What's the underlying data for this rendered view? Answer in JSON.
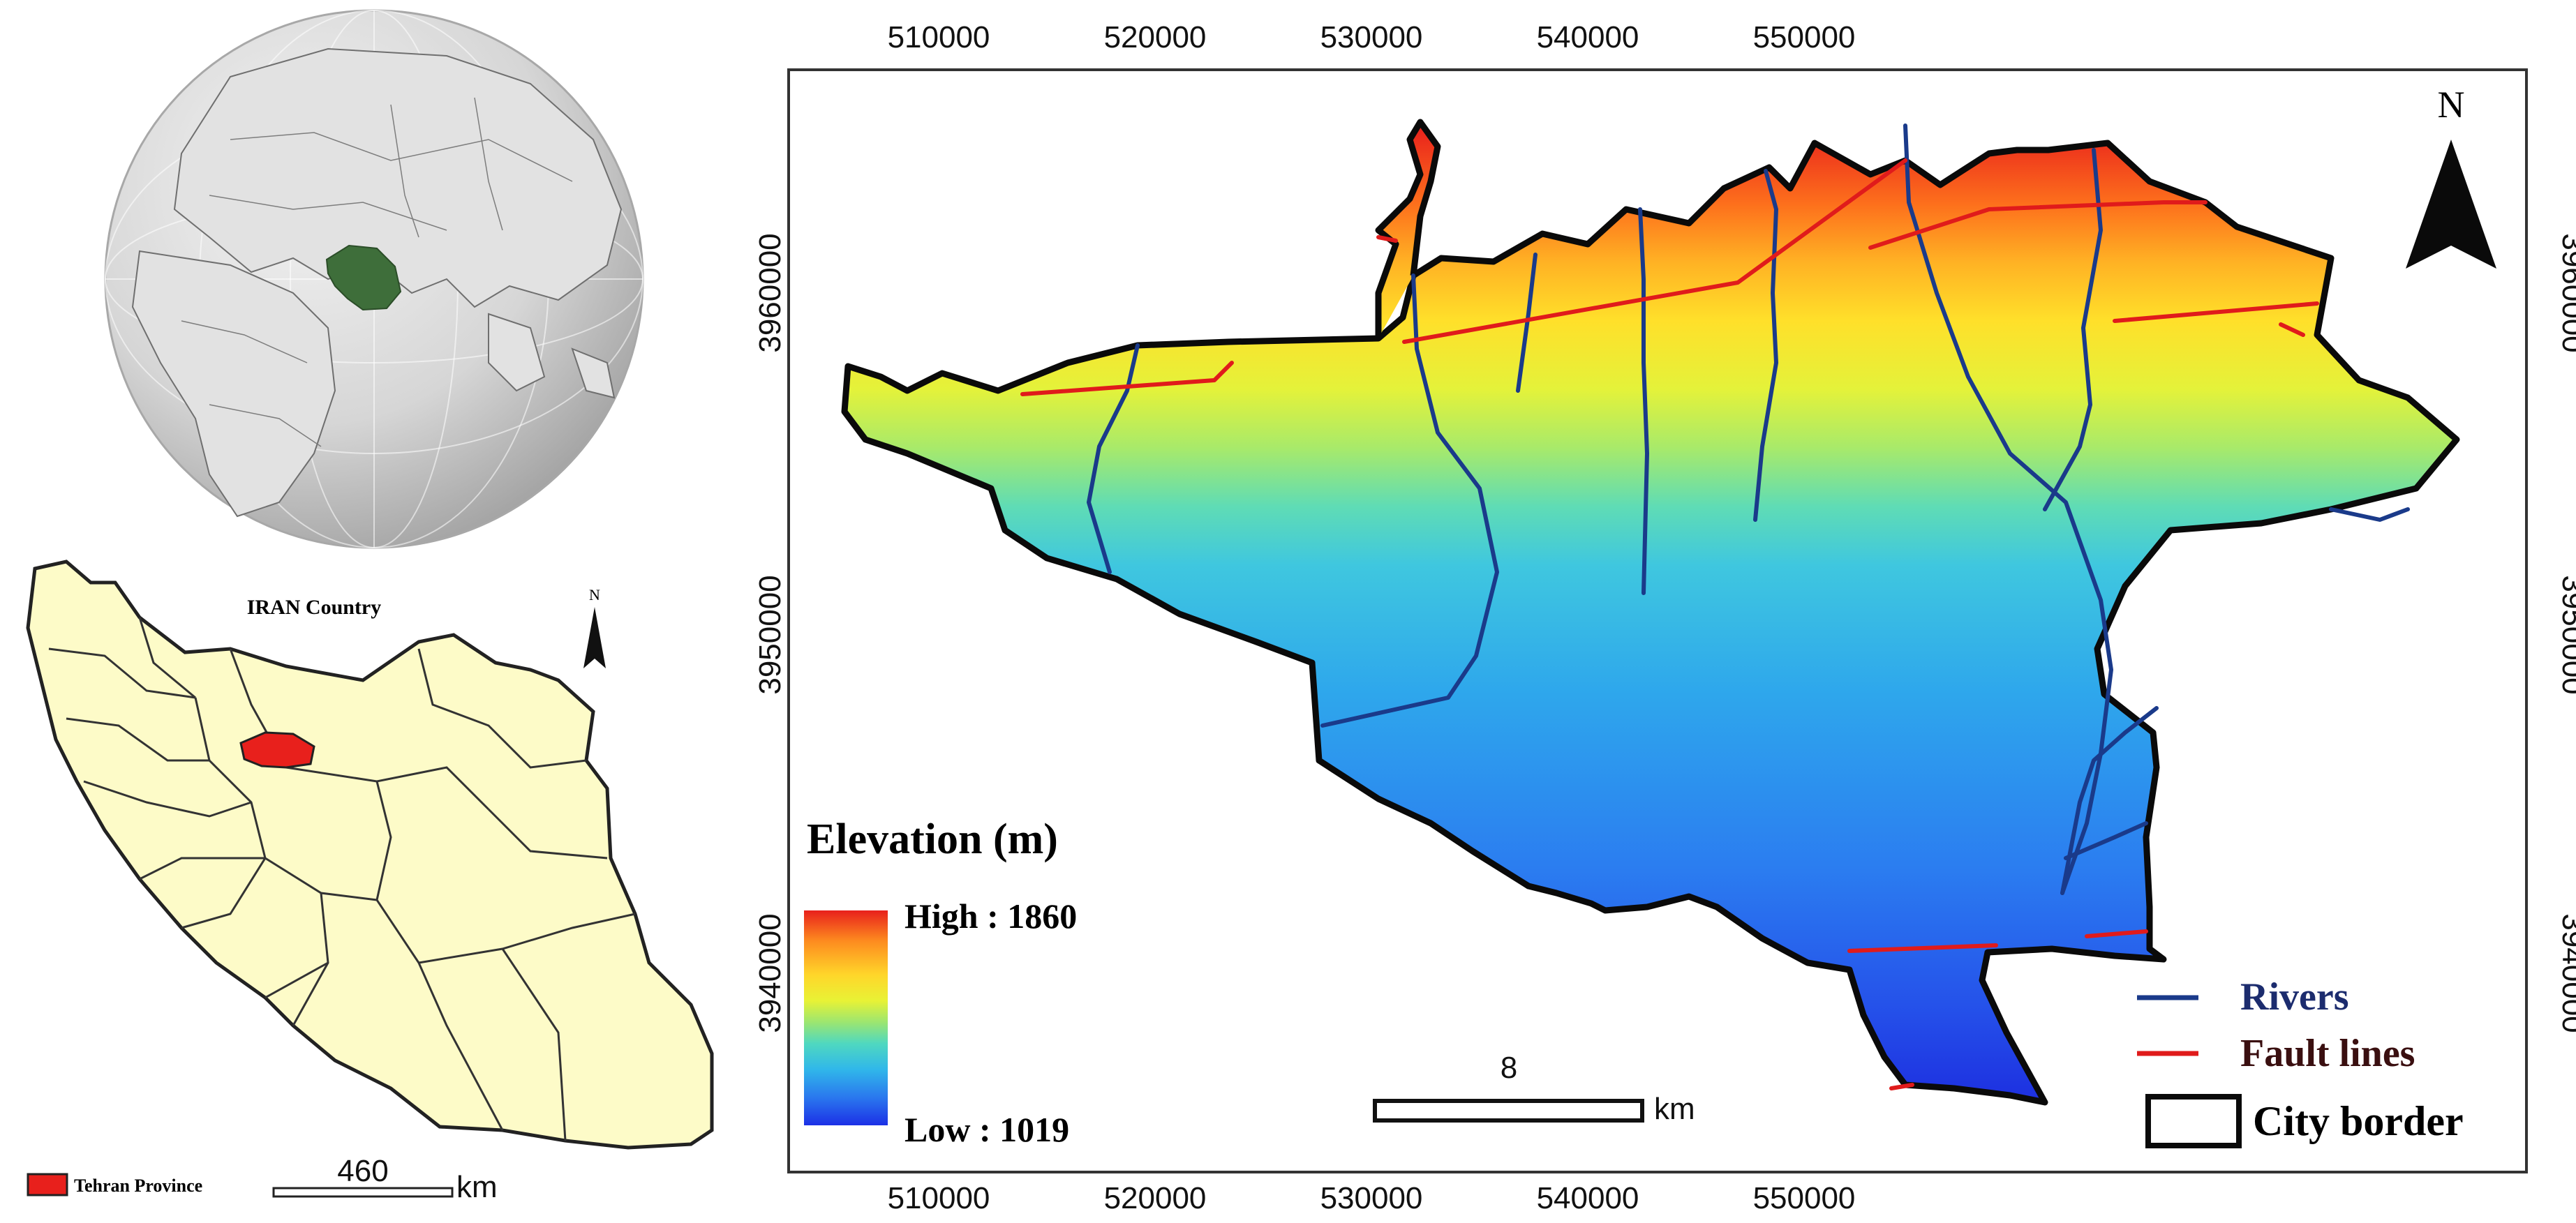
{
  "globe": {
    "highlight_color": "#3e6e3a",
    "land_color": "#dadada",
    "ocean_color": "#b8b8b8"
  },
  "iran_map": {
    "title": "IRAN Country",
    "north_label": "N",
    "legend_label": "Tehran Province",
    "scale_value": "460",
    "scale_unit": "km",
    "fill_color": "#fdfbc8",
    "highlight_color": "#e8201c"
  },
  "main_map": {
    "x_ticks": [
      "510000",
      "520000",
      "530000",
      "540000",
      "550000"
    ],
    "y_ticks": [
      "3960000",
      "3950000",
      "3940000"
    ],
    "north_label": "N",
    "scale_value": "8",
    "scale_unit": "km",
    "elevation": {
      "title": "Elevation (m)",
      "high_label": "High : 1860",
      "low_label": "Low : 1019",
      "high": 1860,
      "low": 1019,
      "ramp_colors": [
        "#e8201c",
        "#fd8a1f",
        "#ffd62a",
        "#e8f235",
        "#9ce670",
        "#4fd8c0",
        "#30b7ea",
        "#2a78ee",
        "#1c30e6"
      ]
    },
    "legend": {
      "rivers": "Rivers",
      "fault_lines": "Fault lines",
      "city_border": "City border",
      "river_color": "#1a3a8a",
      "fault_color": "#e01b1b"
    }
  }
}
